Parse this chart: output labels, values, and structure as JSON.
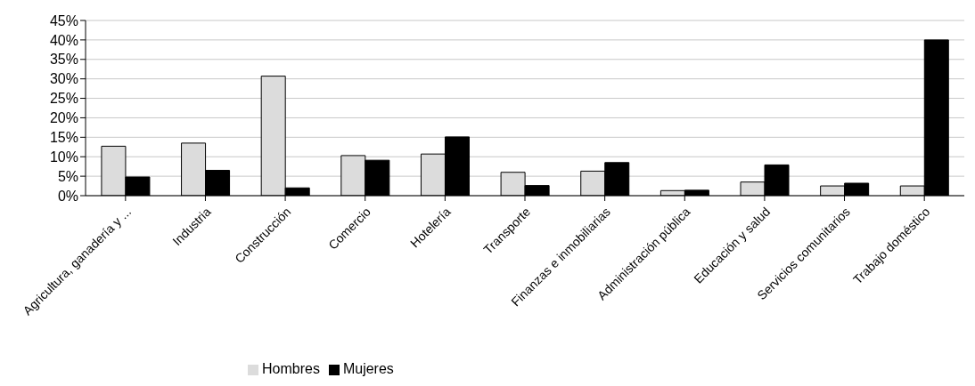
{
  "chart_data": {
    "type": "bar",
    "categories": [
      "Agricultura, ganadería y ...",
      "Industria",
      "Construcción",
      "Comercio",
      "Hotelería",
      "Transporte",
      "Finanzas e inmobiliarias",
      "Administración pública",
      "Educación y salud",
      "Servicios comunitarios",
      "Trabajo doméstico"
    ],
    "series": [
      {
        "name": "Hombres",
        "color": "#dcdcdc",
        "values": [
          12.7,
          13.5,
          30.7,
          10.3,
          10.7,
          6.0,
          6.3,
          1.3,
          3.5,
          2.5,
          2.5
        ]
      },
      {
        "name": "Mujeres",
        "color": "#000000",
        "values": [
          4.8,
          6.5,
          2.0,
          9.1,
          15.1,
          2.6,
          8.5,
          1.4,
          7.9,
          3.2,
          40.0
        ]
      }
    ],
    "ylim": [
      0,
      45
    ],
    "yticks": [
      {
        "value": 0,
        "label": "0%"
      },
      {
        "value": 5,
        "label": "5%"
      },
      {
        "value": 10,
        "label": "10%"
      },
      {
        "value": 15,
        "label": "15%"
      },
      {
        "value": 20,
        "label": "20%"
      },
      {
        "value": 25,
        "label": "25%"
      },
      {
        "value": 30,
        "label": "30%"
      },
      {
        "value": 35,
        "label": "35%"
      },
      {
        "value": 40,
        "label": "40%"
      },
      {
        "value": 45,
        "label": "45%"
      }
    ],
    "grid": "y",
    "legend": "bottom"
  }
}
